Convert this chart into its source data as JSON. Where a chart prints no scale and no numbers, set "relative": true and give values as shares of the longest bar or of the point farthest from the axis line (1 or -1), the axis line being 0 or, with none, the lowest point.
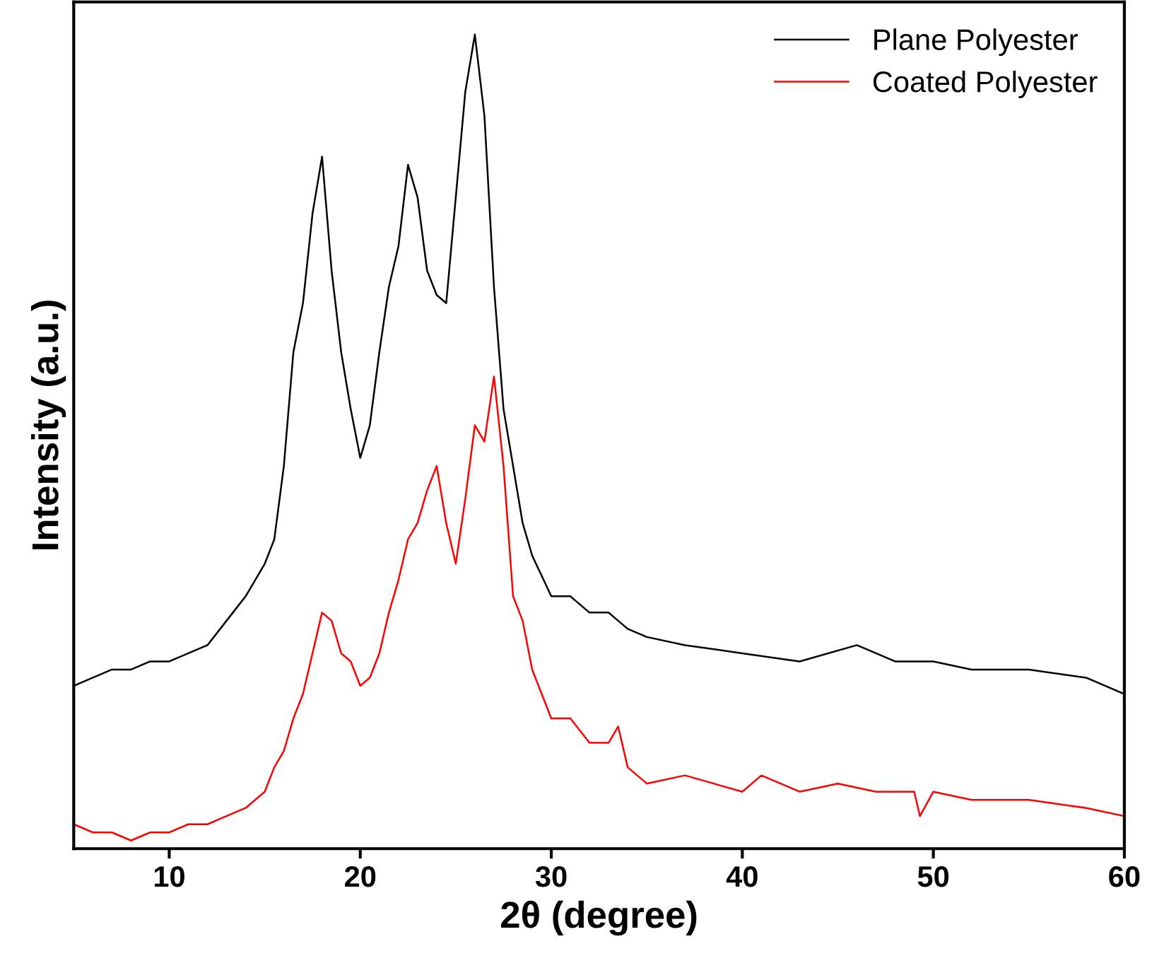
{
  "chart_data": {
    "type": "line",
    "xlabel": "2θ (degree)",
    "ylabel": "Intensity (a.u.)",
    "relative": true,
    "xlim": [
      5,
      60
    ],
    "xticks": [
      10,
      20,
      30,
      40,
      50,
      60
    ],
    "legend": "top right",
    "grid": false,
    "marker": "none",
    "line_style": "solid",
    "series": [
      {
        "name": "Plane Polyester",
        "color": "#000000",
        "x": [
          5,
          6,
          7,
          8,
          9,
          10,
          11,
          12,
          13,
          14,
          15,
          15.5,
          16,
          16.5,
          17,
          17.5,
          18,
          18.5,
          19,
          19.5,
          20,
          20.5,
          21,
          21.5,
          22,
          22.5,
          23,
          23.5,
          24,
          24.5,
          25,
          25.5,
          26,
          26.5,
          27,
          27.5,
          28,
          28.5,
          29,
          30,
          31,
          32,
          33,
          34,
          35,
          37,
          40,
          43,
          46,
          48,
          50,
          52,
          55,
          58,
          60
        ],
        "values": [
          0.2,
          0.21,
          0.22,
          0.22,
          0.23,
          0.23,
          0.24,
          0.25,
          0.28,
          0.31,
          0.35,
          0.38,
          0.47,
          0.61,
          0.67,
          0.78,
          0.85,
          0.71,
          0.61,
          0.54,
          0.48,
          0.52,
          0.61,
          0.69,
          0.74,
          0.84,
          0.8,
          0.71,
          0.68,
          0.67,
          0.8,
          0.93,
          1.0,
          0.9,
          0.69,
          0.54,
          0.47,
          0.4,
          0.36,
          0.31,
          0.31,
          0.29,
          0.29,
          0.27,
          0.26,
          0.25,
          0.24,
          0.23,
          0.25,
          0.23,
          0.23,
          0.22,
          0.22,
          0.21,
          0.19
        ]
      },
      {
        "name": "Coated Polyester",
        "color": "#ff0000",
        "x": [
          5,
          6,
          7,
          8,
          9,
          10,
          11,
          12,
          13,
          14,
          15,
          15.5,
          16,
          16.5,
          17,
          17.5,
          18,
          18.5,
          19,
          19.5,
          20,
          20.5,
          21,
          21.5,
          22,
          22.5,
          23,
          23.5,
          24,
          24.5,
          25,
          25.5,
          26,
          26.5,
          27,
          27.5,
          28,
          28.5,
          29,
          29.5,
          30,
          31,
          32,
          33,
          33.5,
          34,
          35,
          37,
          40,
          41,
          43,
          45,
          47,
          49,
          49.3,
          50,
          52,
          55,
          58,
          60
        ],
        "values": [
          0.03,
          0.02,
          0.02,
          0.01,
          0.02,
          0.02,
          0.03,
          0.03,
          0.04,
          0.05,
          0.07,
          0.1,
          0.12,
          0.16,
          0.19,
          0.24,
          0.29,
          0.28,
          0.24,
          0.23,
          0.2,
          0.21,
          0.24,
          0.29,
          0.33,
          0.38,
          0.4,
          0.44,
          0.47,
          0.4,
          0.35,
          0.43,
          0.52,
          0.5,
          0.58,
          0.47,
          0.31,
          0.28,
          0.22,
          0.19,
          0.16,
          0.16,
          0.13,
          0.13,
          0.15,
          0.1,
          0.08,
          0.09,
          0.07,
          0.09,
          0.07,
          0.08,
          0.07,
          0.07,
          0.04,
          0.07,
          0.06,
          0.06,
          0.05,
          0.04
        ]
      }
    ]
  }
}
